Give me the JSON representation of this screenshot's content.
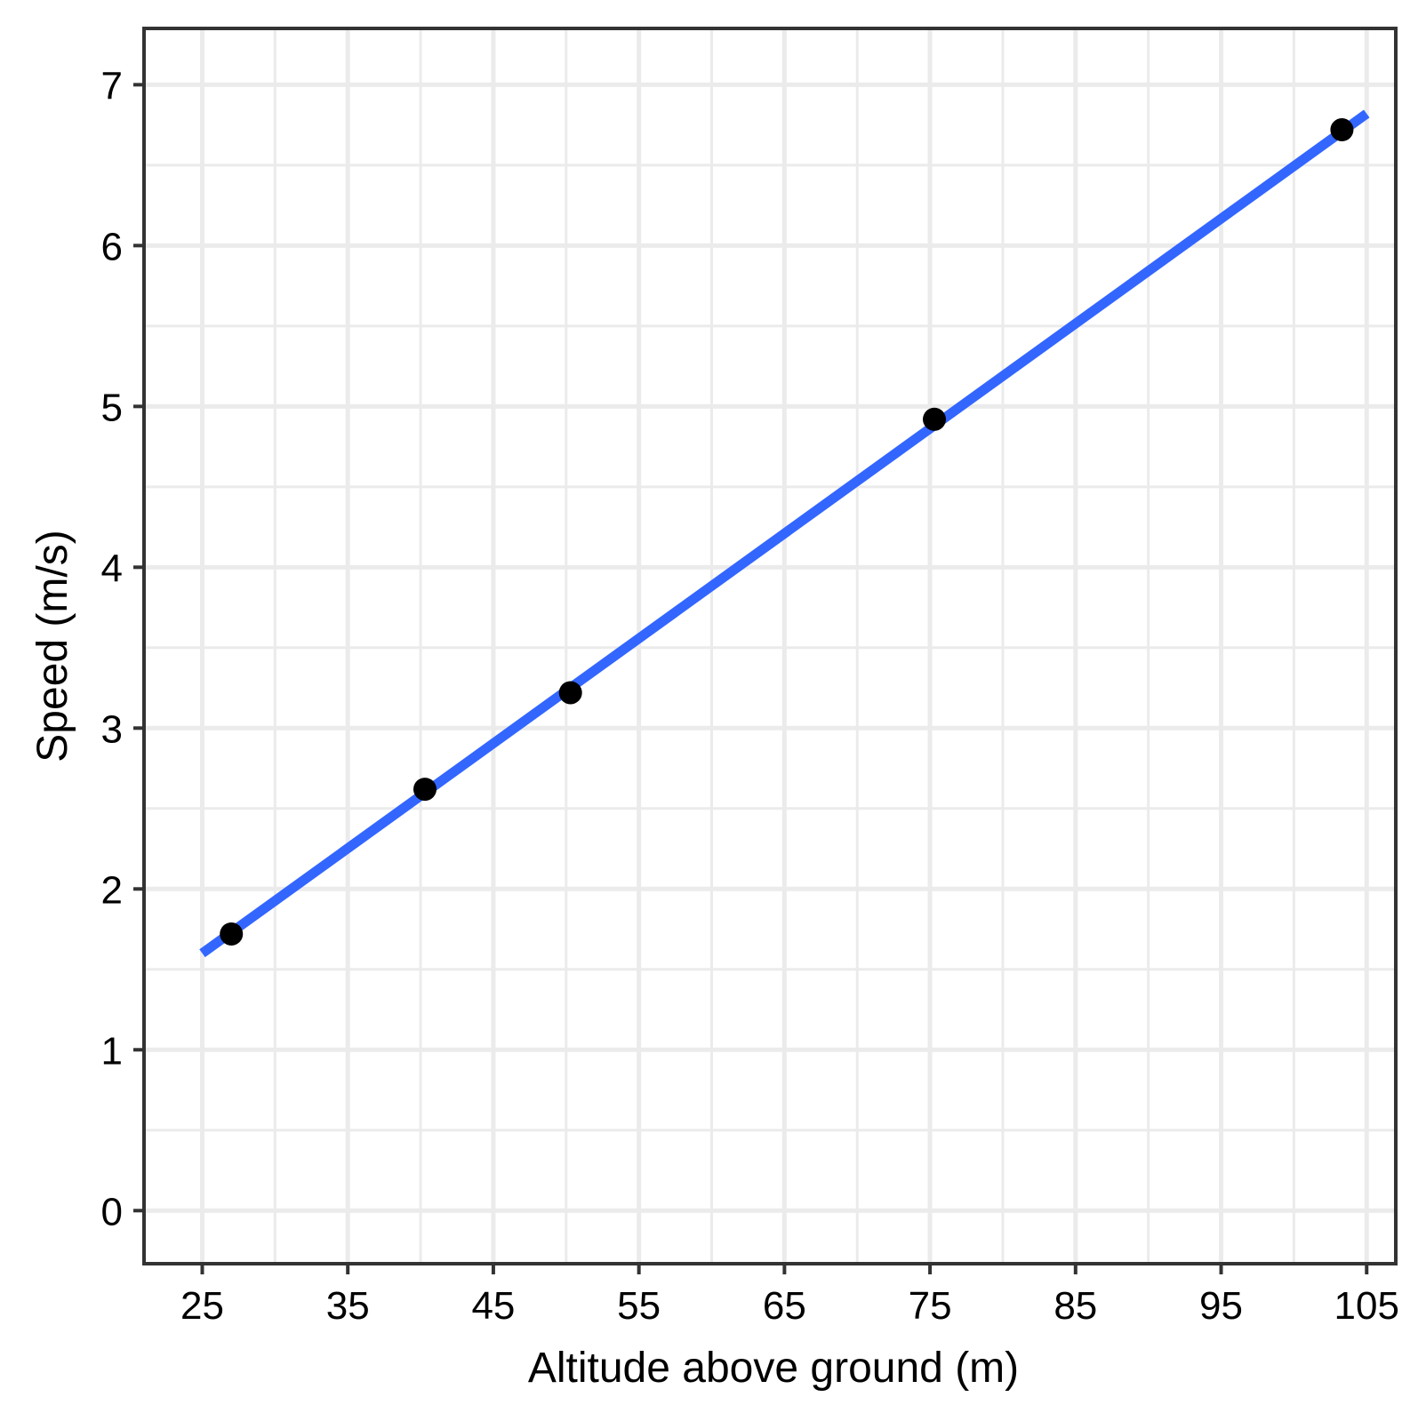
{
  "chart_data": {
    "type": "scatter",
    "xlabel": "Altitude above ground (m)",
    "ylabel": "Speed (m/s)",
    "xlim": [
      21,
      107
    ],
    "ylim": [
      -0.33,
      7.35
    ],
    "x_ticks": [
      25,
      35,
      45,
      55,
      65,
      75,
      85,
      95,
      105
    ],
    "y_ticks": [
      0,
      1,
      2,
      3,
      4,
      5,
      6,
      7
    ],
    "grid": true,
    "points": {
      "x": [
        27,
        40.3,
        50.3,
        75.3,
        103.3
      ],
      "y": [
        1.72,
        2.62,
        3.22,
        4.92,
        6.72
      ]
    },
    "trend_line": {
      "x": [
        25,
        105
      ],
      "y": [
        1.6,
        6.82
      ]
    },
    "colors": {
      "points": "#000000",
      "trend_line": "#3366ff",
      "grid": "#ebebeb",
      "panel_border": "#333333"
    }
  }
}
